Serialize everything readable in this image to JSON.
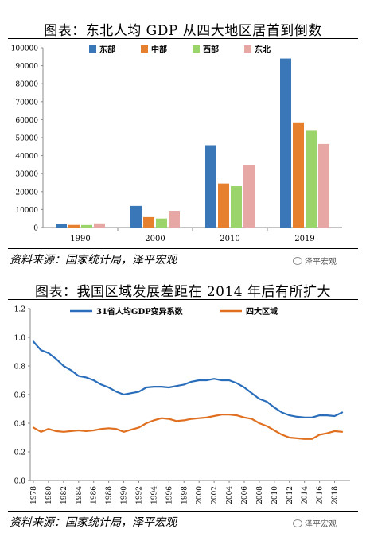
{
  "charts": [
    {
      "title": "图表：东北人均 GDP 从四大地区居首到倒数",
      "source": "资料来源：国家统计局，泽平宏观",
      "watermark": "泽平宏观"
    },
    {
      "title": "图表：我国区域发展差距在 2014 年后有所扩大",
      "source": "资料来源：国家统计局，泽平宏观",
      "watermark": "泽平宏观"
    }
  ],
  "chart_data": [
    {
      "type": "bar",
      "categories": [
        "1990",
        "2000",
        "2010",
        "2019"
      ],
      "series": [
        {
          "name": "东部",
          "color": "#3a77b8",
          "values": [
            2100,
            12000,
            45800,
            94000
          ]
        },
        {
          "name": "中部",
          "color": "#e6802e",
          "values": [
            1450,
            5800,
            24500,
            58500
          ]
        },
        {
          "name": "西部",
          "color": "#9bd46b",
          "values": [
            1400,
            5000,
            23000,
            53800
          ]
        },
        {
          "name": "东北",
          "color": "#e6a7a5",
          "values": [
            2300,
            9300,
            34500,
            46500
          ]
        }
      ],
      "ylim": [
        0,
        100000
      ],
      "yticks": [
        "0",
        "10000",
        "20000",
        "30000",
        "40000",
        "50000",
        "60000",
        "70000",
        "80000",
        "90000",
        "100000"
      ],
      "grid": false,
      "legend": "top"
    },
    {
      "type": "line",
      "x": [
        1978,
        1979,
        1980,
        1981,
        1982,
        1983,
        1984,
        1985,
        1986,
        1987,
        1988,
        1989,
        1990,
        1991,
        1992,
        1993,
        1994,
        1995,
        1996,
        1997,
        1998,
        1999,
        2000,
        2001,
        2002,
        2003,
        2004,
        2005,
        2006,
        2007,
        2008,
        2009,
        2010,
        2011,
        2012,
        2013,
        2014,
        2015,
        2016,
        2017,
        2018,
        2019
      ],
      "series": [
        {
          "name": "31省人均GDP变异系数",
          "color": "#2a6ebb",
          "values": [
            0.97,
            0.91,
            0.89,
            0.85,
            0.8,
            0.77,
            0.73,
            0.72,
            0.7,
            0.67,
            0.65,
            0.62,
            0.6,
            0.61,
            0.62,
            0.65,
            0.655,
            0.655,
            0.65,
            0.66,
            0.67,
            0.69,
            0.7,
            0.7,
            0.71,
            0.7,
            0.7,
            0.68,
            0.65,
            0.61,
            0.57,
            0.55,
            0.51,
            0.475,
            0.455,
            0.445,
            0.44,
            0.44,
            0.455,
            0.455,
            0.45,
            0.475
          ]
        },
        {
          "name": "四大区域",
          "color": "#e07020",
          "values": [
            0.37,
            0.34,
            0.36,
            0.345,
            0.34,
            0.345,
            0.35,
            0.345,
            0.35,
            0.36,
            0.365,
            0.36,
            0.34,
            0.355,
            0.37,
            0.4,
            0.42,
            0.435,
            0.43,
            0.415,
            0.42,
            0.43,
            0.435,
            0.44,
            0.45,
            0.46,
            0.46,
            0.455,
            0.44,
            0.43,
            0.4,
            0.38,
            0.35,
            0.32,
            0.3,
            0.295,
            0.29,
            0.29,
            0.32,
            0.33,
            0.345,
            0.34
          ]
        }
      ],
      "ylim": [
        0,
        1.2
      ],
      "yticks": [
        "0.0",
        "0.2",
        "0.4",
        "0.6",
        "0.8",
        "1.0",
        "1.2"
      ],
      "xticks": [
        "1978",
        "1980",
        "1982",
        "1984",
        "1986",
        "1988",
        "1990",
        "1992",
        "1994",
        "1996",
        "1998",
        "2000",
        "2002",
        "2004",
        "2006",
        "2008",
        "2010",
        "2012",
        "2014",
        "2016",
        "2018"
      ],
      "grid": false,
      "legend": "top"
    }
  ]
}
